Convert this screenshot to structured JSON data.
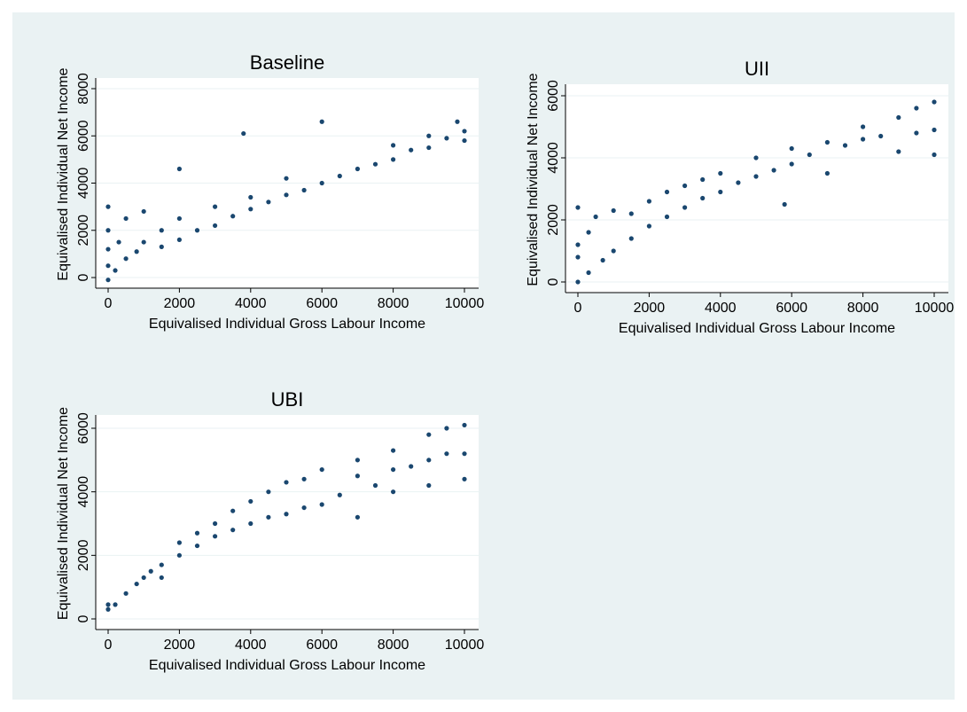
{
  "chart_data": [
    {
      "type": "scatter",
      "title": "Baseline",
      "xlabel": "Equivalised Individual Gross Labour Income",
      "ylabel": "Equivalised Individual Net Income",
      "color": "#1a476f",
      "grid": true,
      "xlim": [
        -348,
        10398
      ],
      "ylim": [
        -450,
        8450
      ],
      "xticks": [
        0,
        2000,
        4000,
        6000,
        8000,
        10000
      ],
      "yticks": [
        0,
        2000,
        4000,
        6000,
        8000
      ],
      "x": [
        0,
        0,
        0,
        0,
        0,
        200,
        300,
        500,
        500,
        800,
        1000,
        1000,
        1500,
        1500,
        2000,
        2000,
        2000,
        2500,
        3000,
        3000,
        3500,
        3800,
        4000,
        4000,
        4500,
        5000,
        5000,
        5500,
        6000,
        6000,
        6500,
        7000,
        7500,
        8000,
        8000,
        8500,
        9000,
        9000,
        9500,
        9800,
        10000,
        10000
      ],
      "y": [
        -100,
        500,
        1200,
        2000,
        3000,
        300,
        1500,
        2500,
        800,
        1100,
        1500,
        2800,
        1300,
        2000,
        1600,
        2500,
        4600,
        2000,
        2200,
        3000,
        2600,
        6100,
        2900,
        3400,
        3200,
        3500,
        4200,
        3700,
        4000,
        6600,
        4300,
        4600,
        4800,
        5000,
        5600,
        5400,
        5500,
        6000,
        5900,
        6600,
        5800,
        6200
      ]
    },
    {
      "type": "scatter",
      "title": "UII",
      "xlabel": "Equivalised Individual Gross Labour Income",
      "ylabel": "Equivalised Individual Net Income",
      "color": "#1a476f",
      "grid": true,
      "xlim": [
        -348,
        10398
      ],
      "ylim": [
        -343,
        6371
      ],
      "xticks": [
        0,
        2000,
        4000,
        6000,
        8000,
        10000
      ],
      "yticks": [
        0,
        2000,
        4000,
        6000
      ],
      "x": [
        0,
        0,
        0,
        0,
        300,
        300,
        500,
        700,
        1000,
        1000,
        1500,
        1500,
        2000,
        2000,
        2500,
        2500,
        3000,
        3000,
        3500,
        3500,
        4000,
        4000,
        4500,
        5000,
        5000,
        5500,
        5800,
        6000,
        6000,
        6500,
        7000,
        7000,
        7500,
        8000,
        8000,
        8500,
        9000,
        9000,
        9500,
        9500,
        10000,
        10000,
        10000
      ],
      "y": [
        0,
        800,
        1200,
        2400,
        300,
        1600,
        2100,
        700,
        1000,
        2300,
        1400,
        2200,
        1800,
        2600,
        2100,
        2900,
        2400,
        3100,
        2700,
        3300,
        2900,
        3500,
        3200,
        3400,
        4000,
        3600,
        2500,
        3800,
        4300,
        4100,
        3500,
        4500,
        4400,
        4600,
        5000,
        4700,
        4200,
        5300,
        4800,
        5600,
        4100,
        4900,
        5800
      ]
    },
    {
      "type": "scatter",
      "title": "UBI",
      "xlabel": "Equivalised Individual Gross Labour Income",
      "ylabel": "Equivalised Individual Net Income",
      "color": "#1a476f",
      "grid": true,
      "xlim": [
        -348,
        10398
      ],
      "ylim": [
        -335,
        6419
      ],
      "xticks": [
        0,
        2000,
        4000,
        6000,
        8000,
        10000
      ],
      "yticks": [
        0,
        2000,
        4000,
        6000
      ],
      "x": [
        0,
        0,
        200,
        500,
        800,
        1000,
        1200,
        1500,
        1500,
        2000,
        2000,
        2500,
        2500,
        3000,
        3000,
        3500,
        3500,
        4000,
        4000,
        4500,
        4500,
        5000,
        5000,
        5500,
        5500,
        6000,
        6000,
        6500,
        7000,
        7000,
        7000,
        7500,
        8000,
        8000,
        8000,
        8500,
        9000,
        9000,
        9000,
        9500,
        9500,
        10000,
        10000,
        10000
      ],
      "y": [
        300,
        450,
        450,
        800,
        1100,
        1300,
        1500,
        1700,
        1300,
        2000,
        2400,
        2300,
        2700,
        2600,
        3000,
        2800,
        3400,
        3000,
        3700,
        3200,
        4000,
        3300,
        4300,
        3500,
        4400,
        3600,
        4700,
        3900,
        3200,
        4500,
        5000,
        4200,
        4000,
        4700,
        5300,
        4800,
        4200,
        5000,
        5800,
        5200,
        6000,
        4400,
        5200,
        6100
      ]
    }
  ]
}
